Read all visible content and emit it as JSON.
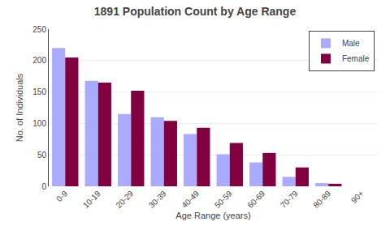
{
  "chart_data": {
    "type": "bar",
    "title": "1891 Population Count by Age Range",
    "xlabel": "Age Range (years)",
    "ylabel": "No. of Individuals",
    "categories": [
      "0-9",
      "10-19",
      "20-29",
      "30-39",
      "40-49",
      "50-59",
      "60-69",
      "70-79",
      "80-89",
      "90+"
    ],
    "series": [
      {
        "name": "Male",
        "color": "#aaaaff",
        "values": [
          220,
          168,
          115,
          110,
          83,
          51,
          38,
          15,
          5,
          0
        ]
      },
      {
        "name": "Female",
        "color": "#800040",
        "values": [
          205,
          165,
          152,
          104,
          93,
          69,
          53,
          30,
          4,
          0
        ]
      }
    ],
    "ylim": [
      0,
      250
    ],
    "yticks": [
      0,
      50,
      100,
      150,
      200,
      250
    ],
    "grid": true,
    "legend": "upper right"
  }
}
